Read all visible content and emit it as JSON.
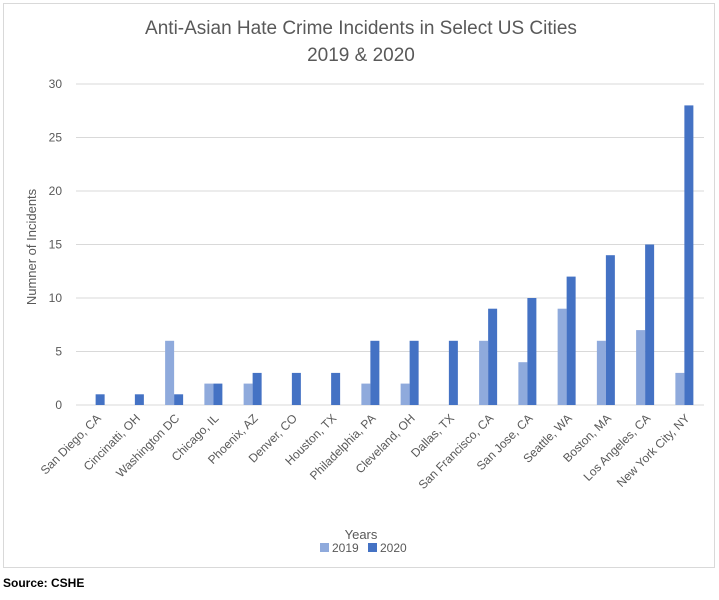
{
  "chart_data": {
    "type": "bar",
    "title": "Anti-Asian Hate Crime Incidents in Select US Cities",
    "subtitle": "2019 & 2020",
    "xlabel": "Years",
    "ylabel": "Numner of Incidents",
    "ylim": [
      0,
      30
    ],
    "yticks": [
      0,
      5,
      10,
      15,
      20,
      25,
      30
    ],
    "grid": true,
    "legend_position": "bottom",
    "categories": [
      "San Diego, CA",
      "Cincinatti, OH",
      "Washington DC",
      "Chicago, IL",
      "Phoenix, AZ",
      "Denver, CO",
      "Houston, TX",
      "Philadelphia, PA",
      "Cleveland, OH",
      "Dallas, TX",
      "San Francisco, CA",
      "San Jose, CA",
      "Seattle, WA",
      "Boston, MA",
      "Los Angeles, CA",
      "New York City, NY"
    ],
    "series": [
      {
        "name": "2019",
        "color": "#8faadc",
        "values": [
          0,
          0,
          6,
          2,
          2,
          0,
          0,
          2,
          2,
          0,
          6,
          4,
          9,
          6,
          7,
          3
        ]
      },
      {
        "name": "2020",
        "color": "#4472c4",
        "values": [
          1,
          1,
          1,
          2,
          3,
          3,
          3,
          6,
          6,
          6,
          9,
          10,
          12,
          14,
          15,
          28
        ]
      }
    ]
  },
  "source": "Source: CSHE",
  "colors": {
    "gridline": "#d9d9d9",
    "text": "#595959"
  }
}
